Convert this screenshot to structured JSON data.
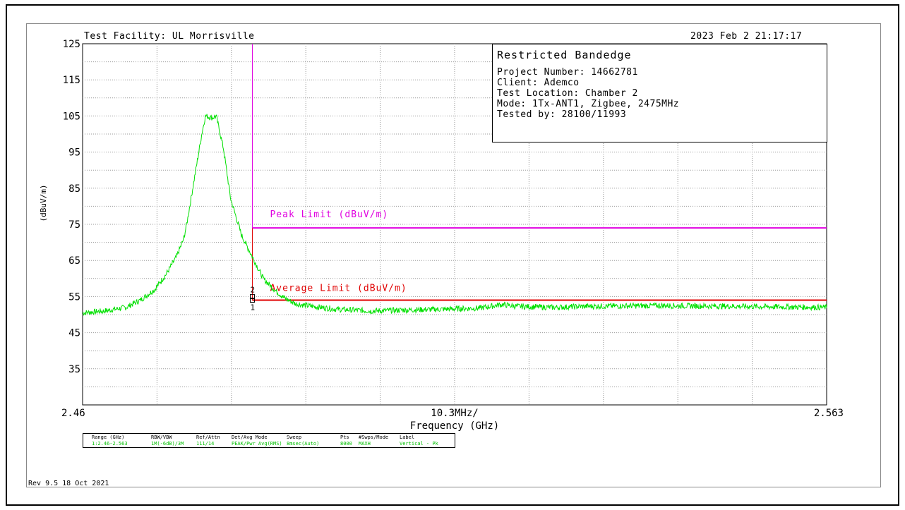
{
  "header": {
    "facility": "Test Facility:  UL Morrisville",
    "timestamp": "2023 Feb 2    21:17:17"
  },
  "info_box": {
    "title": "Restricted Bandedge",
    "lines": [
      "Project Number: 14662781",
      "Client: Ademco",
      "Test Location: Chamber 2",
      "Mode: 1Tx-ANT1, Zigbee, 2475MHz",
      "Tested by: 28100/11993"
    ]
  },
  "sweep_table": {
    "headers": [
      "Range (GHz)",
      "RBW/VBW",
      "Ref/Attn",
      "Det/Avg Mode",
      "Sweep",
      "Pts",
      "#Swps/Mode",
      "Label"
    ],
    "values": [
      "1:2.46-2.563",
      "1M(-6dB)/3M",
      "111/14",
      "PEAK/Pwr Avg(RMS)",
      "8msec(Auto)",
      "8000",
      "MAXH",
      "Vertical - Pk"
    ]
  },
  "footer": {
    "revision": "Rev 9.5 18 Oct 2021"
  },
  "chart_data": {
    "type": "line",
    "title": "",
    "xlabel": "Frequency (GHz)",
    "ylabel": "(dBuV/m)",
    "xlim": [
      2.46,
      2.563
    ],
    "ylim": [
      25,
      125
    ],
    "x_tick_labels": [
      "2.46",
      "10.3MHz/",
      "2.563"
    ],
    "y_ticks": [
      125,
      115,
      105,
      95,
      85,
      75,
      65,
      55,
      45,
      35
    ],
    "grid": true,
    "series": [
      {
        "name": "",
        "color": "#00e000",
        "x": [
          2.46,
          2.463,
          2.466,
          2.468,
          2.47,
          2.4715,
          2.473,
          2.474,
          2.4745,
          2.4755,
          2.4765,
          2.477,
          2.478,
          2.4785,
          2.4795,
          2.4805,
          2.482,
          2.4835,
          2.485,
          2.4865,
          2.488,
          2.4895,
          2.491,
          2.495,
          2.5,
          2.505,
          2.51,
          2.515,
          2.518,
          2.52,
          2.525,
          2.53,
          2.54,
          2.55,
          2.563
        ],
        "y": [
          50.5,
          51,
          52,
          54,
          57,
          61,
          66,
          71,
          76,
          88,
          100,
          105,
          104.5,
          105,
          96,
          82,
          72,
          66,
          60,
          57,
          54.5,
          53,
          52.5,
          51.5,
          51,
          51.3,
          51.5,
          51.8,
          52.8,
          52.3,
          52,
          52.3,
          52.5,
          52.3,
          52
        ]
      }
    ],
    "limit_lines": [
      {
        "label": "Peak Limit (dBuV/m)",
        "value": 74,
        "x_start": 2.4835,
        "color": "#e000e0"
      },
      {
        "label": "Average Limit (dBuV/m)",
        "value": 54,
        "x_start": 2.4835,
        "color": "#e00000"
      }
    ],
    "markers": [
      {
        "label": "2",
        "x": 2.4835,
        "y": 55
      },
      {
        "label": "1",
        "x": 2.4835,
        "y": 54
      }
    ]
  }
}
